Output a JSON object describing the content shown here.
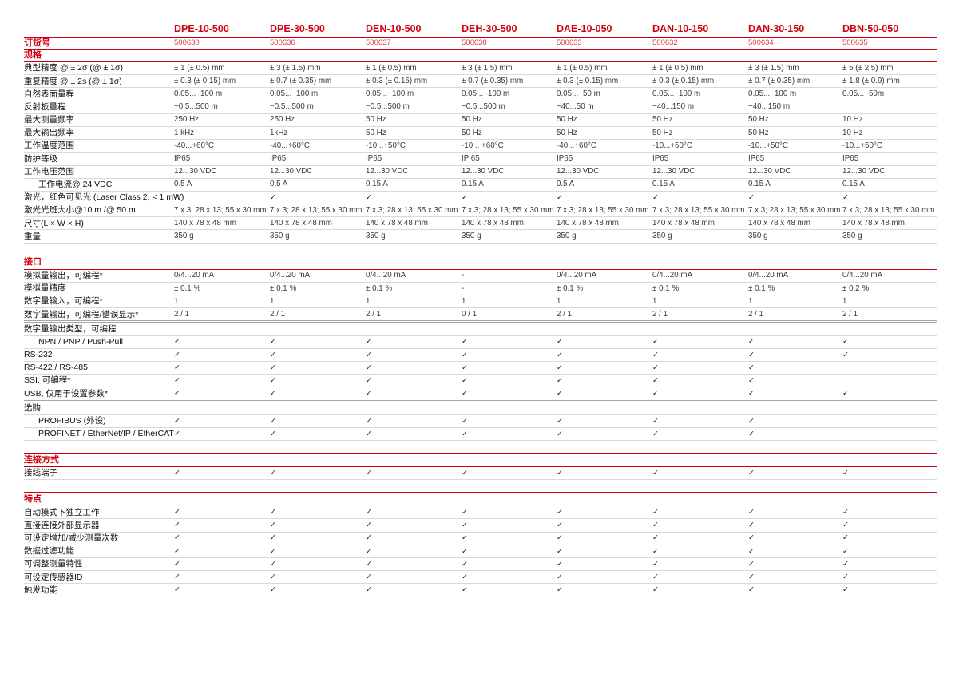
{
  "colors": {
    "brand_red": "#D2000F",
    "brand_red_soft": "#D9404B",
    "row_line": "#D9D9D9",
    "group_line": "#A6A6A6",
    "label_text": "#111111",
    "value_text": "#3A3A3A"
  },
  "icons": {
    "check": "✓"
  },
  "table": {
    "order_label": "订货号",
    "products": [
      {
        "model": "DPE-10-500",
        "order_no": "500630"
      },
      {
        "model": "DPE-30-500",
        "order_no": "500636"
      },
      {
        "model": "DEN-10-500",
        "order_no": "500637"
      },
      {
        "model": "DEH-30-500",
        "order_no": "500638"
      },
      {
        "model": "DAE-10-050",
        "order_no": "500633"
      },
      {
        "model": "DAN-10-150",
        "order_no": "500632"
      },
      {
        "model": "DAN-30-150",
        "order_no": "500634"
      },
      {
        "model": "DBN-50-050",
        "order_no": "500635"
      }
    ],
    "sections": [
      {
        "title": "规格",
        "rows": [
          {
            "label": "典型精度 @ ± 2σ (@ ± 1σ)",
            "values": [
              "± 1 (± 0.5) mm",
              "± 3 (± 1.5) mm",
              "± 1 (± 0.5) mm",
              "± 3 (± 1.5) mm",
              "± 1 (± 0.5) mm",
              "± 1 (± 0.5) mm",
              "± 3 (± 1.5) mm",
              "± 5 (± 2.5) mm"
            ]
          },
          {
            "label": "重复精度 @ ± 2s (@ ± 1σ)",
            "values": [
              "± 0.3 (± 0.15) mm",
              "± 0.7 (± 0.35) mm",
              "± 0.3 (± 0.15) mm",
              "± 0.7 (± 0.35) mm",
              "± 0.3 (± 0.15) mm",
              "± 0.3 (± 0.15) mm",
              "± 0.7 (± 0.35) mm",
              "± 1.8 (± 0.9) mm"
            ]
          },
          {
            "label": "自然表面量程",
            "values": [
              "0.05...~100 m",
              "0.05...~100 m",
              "0.05...~100 m",
              "0.05...~100 m",
              "0.05...~50 m",
              "0.05...~100 m",
              "0.05...~100 m",
              "0.05...~50m"
            ]
          },
          {
            "label": "反射板量程",
            "values": [
              "~0.5...500 m",
              "~0.5...500 m",
              "~0.5...500 m",
              "~0.5...500 m",
              "~40...50 m",
              "~40...150 m",
              "~40...150 m",
              ""
            ]
          },
          {
            "label": "最大测量频率",
            "values": [
              "250 Hz",
              "250 Hz",
              "50 Hz",
              "50 Hz",
              "50 Hz",
              "50 Hz",
              "50 Hz",
              "10 Hz"
            ]
          },
          {
            "label": "最大输出频率",
            "values": [
              "1 kHz",
              "1kHz",
              "50 Hz",
              "50 Hz",
              "50 Hz",
              "50 Hz",
              "50 Hz",
              "10 Hz"
            ]
          },
          {
            "label": "工作温度范围",
            "values": [
              "-40...+60°C",
              "-40...+60°C",
              "-10...+50°C",
              "-10... +60°C",
              "-40...+60°C",
              "-10...+50°C",
              "-10...+50°C",
              "-10...+50°C"
            ]
          },
          {
            "label": "防护等级",
            "values": [
              "IP65",
              "IP65",
              "IP65",
              "IP 65",
              "IP65",
              "IP65",
              "IP65",
              "IP65"
            ]
          },
          {
            "label": "工作电压范围",
            "values": [
              "12...30 VDC",
              "12...30 VDC",
              "12...30 VDC",
              "12...30 VDC",
              "12...30 VDC",
              "12...30 VDC",
              "12...30 VDC",
              "12...30 VDC"
            ]
          },
          {
            "label": "工作电流@ 24 VDC",
            "indent": true,
            "values": [
              "0.5 A",
              "0.5 A",
              "0.15 A",
              "0.15 A",
              "0.5 A",
              "0.15 A",
              "0.15 A",
              "0.15 A"
            ]
          },
          {
            "label": "激光，红色可见光 (Laser Class 2, < 1 mW)",
            "values": [
              "✓",
              "✓",
              "✓",
              "✓",
              "✓",
              "✓",
              "✓",
              "✓"
            ]
          },
          {
            "label": "激光光斑大小@10 m /@ 50 m",
            "values": [
              "7 x 3; 28 x 13; 55 x 30 mm",
              "7 x 3; 28 x 13; 55 x 30 mm",
              "7 x 3; 28 x 13; 55 x 30 mm",
              "7 x 3; 28 x 13; 55 x 30 mm",
              "7 x 3; 28 x 13; 55 x 30 mm",
              "7 x 3; 28 x 13; 55 x 30 mm",
              "7 x 3; 28 x 13; 55 x 30 mm",
              "7 x 3; 28 x 13; 55 x 30 mm"
            ]
          },
          {
            "label": "尺寸(L × W × H)",
            "values": [
              "140 x 78 x 48 mm",
              "140 x 78 x 48 mm",
              "140 x 78 x 48 mm",
              "140 x 78 x 48 mm",
              "140 x 78 x 48 mm",
              "140 x 78 x 48 mm",
              "140 x 78 x 48 mm",
              "140 x 78 x 48 mm"
            ]
          },
          {
            "label": "重量",
            "values": [
              "350 g",
              "350 g",
              "350 g",
              "350 g",
              "350 g",
              "350 g",
              "350 g",
              "350 g"
            ]
          }
        ]
      },
      {
        "title": "接口",
        "rows": [
          {
            "label": "模拟量输出，可编程*",
            "values": [
              "0/4...20 mA",
              "0/4...20 mA",
              "0/4...20 mA",
              "-",
              "0/4...20 mA",
              "0/4...20 mA",
              "0/4...20 mA",
              "0/4...20 mA"
            ]
          },
          {
            "label": "模拟量精度",
            "values": [
              "± 0.1 %",
              "± 0.1 %",
              "± 0.1 %",
              "-",
              "± 0.1 %",
              "± 0.1 %",
              "± 0.1 %",
              "± 0.2 %"
            ]
          },
          {
            "label": "数字量输入，可编程*",
            "values": [
              "1",
              "1",
              "1",
              "1",
              "1",
              "1",
              "1",
              "1"
            ]
          },
          {
            "label": "数字量输出，可编程/错误显示*",
            "group_end": true,
            "values": [
              "2 / 1",
              "2 / 1",
              "2 / 1",
              "0 / 1",
              "2 / 1",
              "2 / 1",
              "2 / 1",
              "2 / 1"
            ]
          },
          {
            "label": "数字量输出类型，可编程",
            "values": [
              "",
              "",
              "",
              "",
              "",
              "",
              "",
              ""
            ]
          },
          {
            "label": "NPN / PNP / Push-Pull",
            "indent": true,
            "values": [
              "✓",
              "✓",
              "✓",
              "✓",
              "✓",
              "✓",
              "✓",
              "✓"
            ]
          },
          {
            "label": "RS-232",
            "values": [
              "✓",
              "✓",
              "✓",
              "✓",
              "✓",
              "✓",
              "✓",
              "✓"
            ]
          },
          {
            "label": "RS-422 / RS-485",
            "values": [
              "✓",
              "✓",
              "✓",
              "✓",
              "✓",
              "✓",
              "✓",
              ""
            ]
          },
          {
            "label": "SSI, 可编程*",
            "values": [
              "✓",
              "✓",
              "✓",
              "✓",
              "✓",
              "✓",
              "✓",
              ""
            ]
          },
          {
            "label": "USB, 仅用于设置参数*",
            "group_end": true,
            "values": [
              "✓",
              "✓",
              "✓",
              "✓",
              "✓",
              "✓",
              "✓",
              "✓"
            ]
          },
          {
            "label": "选购",
            "values": [
              "",
              "",
              "",
              "",
              "",
              "",
              "",
              ""
            ]
          },
          {
            "label": "PROFIBUS (外设)",
            "indent": true,
            "values": [
              "✓",
              "✓",
              "✓",
              "✓",
              "✓",
              "✓",
              "✓",
              ""
            ]
          },
          {
            "label": "PROFINET / EtherNet/IP / EtherCAT",
            "indent": true,
            "values": [
              "✓",
              "✓",
              "✓",
              "✓",
              "✓",
              "✓",
              "✓",
              ""
            ]
          }
        ]
      },
      {
        "title": "连接方式",
        "rows": [
          {
            "label": "接线端子",
            "values": [
              "✓",
              "✓",
              "✓",
              "✓",
              "✓",
              "✓",
              "✓",
              "✓"
            ]
          }
        ]
      },
      {
        "title": "特点",
        "rows": [
          {
            "label": "自动模式下独立工作",
            "values": [
              "✓",
              "✓",
              "✓",
              "✓",
              "✓",
              "✓",
              "✓",
              "✓"
            ]
          },
          {
            "label": "直接连接外部显示器",
            "values": [
              "✓",
              "✓",
              "✓",
              "✓",
              "✓",
              "✓",
              "✓",
              "✓"
            ]
          },
          {
            "label": "可设定增加/减少测量次数",
            "values": [
              "✓",
              "✓",
              "✓",
              "✓",
              "✓",
              "✓",
              "✓",
              "✓"
            ]
          },
          {
            "label": "数据过滤功能",
            "values": [
              "✓",
              "✓",
              "✓",
              "✓",
              "✓",
              "✓",
              "✓",
              "✓"
            ]
          },
          {
            "label": "可调整测量特性",
            "values": [
              "✓",
              "✓",
              "✓",
              "✓",
              "✓",
              "✓",
              "✓",
              "✓"
            ]
          },
          {
            "label": "可设定传感器ID",
            "values": [
              "✓",
              "✓",
              "✓",
              "✓",
              "✓",
              "✓",
              "✓",
              "✓"
            ]
          },
          {
            "label": "触发功能",
            "values": [
              "✓",
              "✓",
              "✓",
              "✓",
              "✓",
              "✓",
              "✓",
              "✓"
            ]
          }
        ]
      }
    ]
  }
}
